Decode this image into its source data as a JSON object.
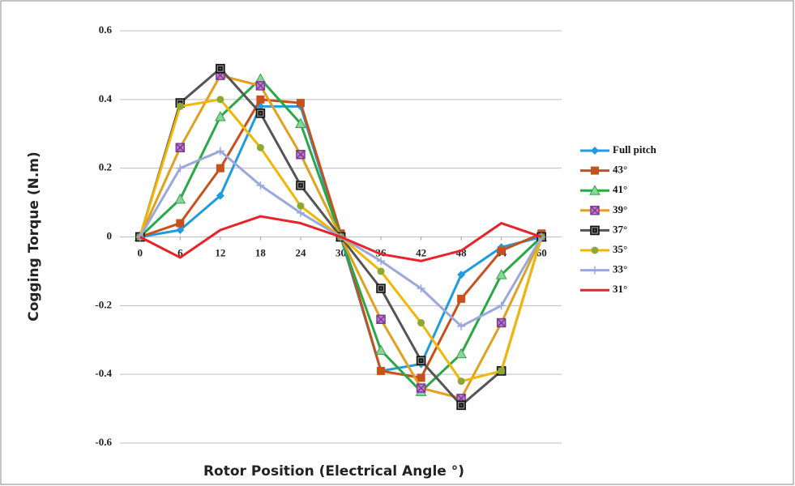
{
  "chart_data": {
    "type": "line",
    "x_label": "Rotor Position (Electrical Angle °)",
    "y_label": "Cogging Torque (N.m)",
    "x": [
      0,
      6,
      12,
      18,
      24,
      30,
      36,
      42,
      48,
      54,
      60
    ],
    "xlim": [
      -3,
      63
    ],
    "xticks": [
      0,
      6,
      12,
      18,
      24,
      30,
      36,
      42,
      48,
      54,
      60
    ],
    "ylim": [
      -0.6,
      0.6
    ],
    "yticks": [
      -0.6,
      -0.4,
      -0.2,
      0,
      0.2,
      0.4,
      0.6
    ],
    "grid": true,
    "legend": "right",
    "series": [
      {
        "name": "Full pitch",
        "color": "#1f9be0",
        "marker": "diamond",
        "values": [
          0,
          0.02,
          0.12,
          0.38,
          0.38,
          0,
          -0.39,
          -0.37,
          -0.11,
          -0.03,
          0
        ]
      },
      {
        "name": "43°",
        "color": "#c8501a",
        "marker": "square",
        "values": [
          0,
          0.04,
          0.2,
          0.4,
          0.39,
          0.01,
          -0.39,
          -0.41,
          -0.18,
          -0.04,
          0.01
        ]
      },
      {
        "name": "41°",
        "color": "#2aa845",
        "marker": "triangle",
        "values": [
          0,
          0.11,
          0.35,
          0.46,
          0.33,
          0,
          -0.33,
          -0.45,
          -0.34,
          -0.11,
          0
        ]
      },
      {
        "name": "39°",
        "color": "#e0a020",
        "marker": "square-x",
        "values": [
          0,
          0.26,
          0.47,
          0.44,
          0.24,
          0,
          -0.24,
          -0.44,
          -0.47,
          -0.25,
          0
        ]
      },
      {
        "name": "37°",
        "color": "#555555",
        "marker": "square-dot",
        "values": [
          0,
          0.39,
          0.49,
          0.36,
          0.15,
          0,
          -0.15,
          -0.36,
          -0.49,
          -0.39,
          0
        ]
      },
      {
        "name": "35°",
        "color": "#f2b705",
        "marker": "circle",
        "values": [
          0,
          0.38,
          0.4,
          0.26,
          0.09,
          0,
          -0.1,
          -0.25,
          -0.42,
          -0.39,
          0
        ]
      },
      {
        "name": "33°",
        "color": "#9aa8dc",
        "marker": "plus",
        "values": [
          0,
          0.2,
          0.25,
          0.15,
          0.07,
          0,
          -0.07,
          -0.15,
          -0.26,
          -0.2,
          0
        ]
      },
      {
        "name": "31°",
        "color": "#e8232a",
        "marker": "none",
        "values": [
          0,
          -0.06,
          0.02,
          0.06,
          0.04,
          0,
          -0.05,
          -0.07,
          -0.04,
          0.04,
          0
        ]
      }
    ]
  }
}
